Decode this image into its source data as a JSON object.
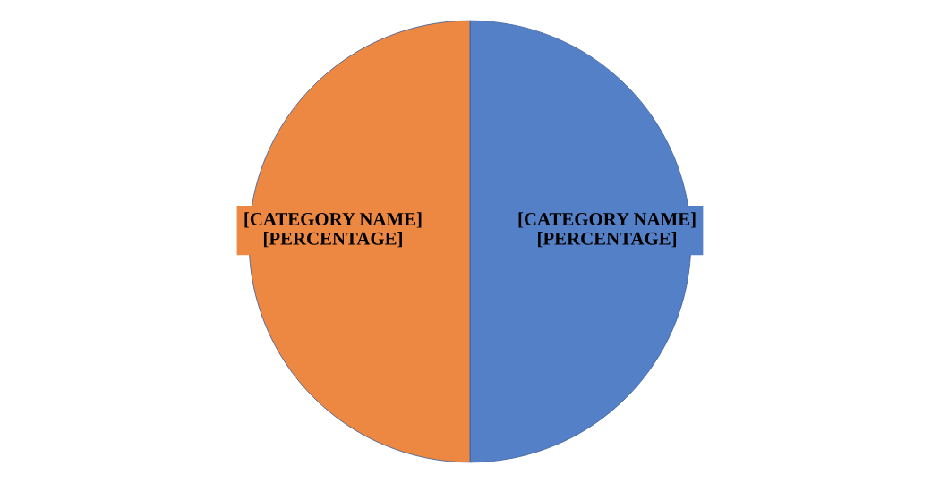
{
  "chart_data": {
    "type": "pie",
    "categories": [
      "[CATEGORY NAME]",
      "[CATEGORY NAME]"
    ],
    "values": [
      50,
      50
    ],
    "colors": [
      "#5480c8",
      "#ed8843"
    ],
    "value_labels": [
      "[PERCENTAGE]",
      "[PERCENTAGE]"
    ],
    "legend": false
  }
}
